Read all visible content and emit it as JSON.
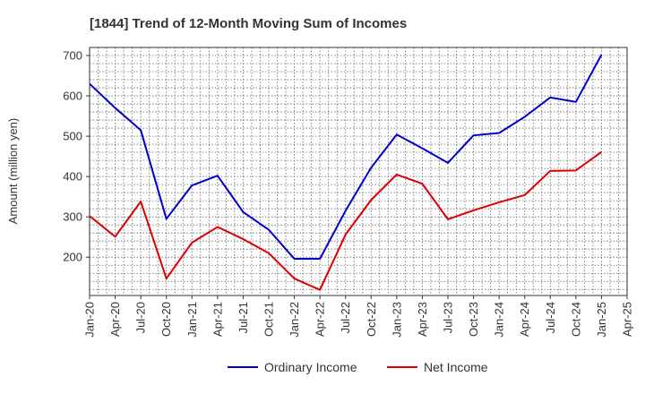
{
  "chart_data": {
    "type": "line",
    "title": "[1844]  Trend of 12-Month Moving Sum of Incomes",
    "xlabel": "",
    "ylabel": "Amount (million yen)",
    "categories": [
      "Jan-20",
      "Apr-20",
      "Jul-20",
      "Oct-20",
      "Jan-21",
      "Apr-21",
      "Jul-21",
      "Oct-21",
      "Jan-22",
      "Apr-22",
      "Jul-22",
      "Oct-22",
      "Jan-23",
      "Apr-23",
      "Jul-23",
      "Oct-23",
      "Jan-24",
      "Apr-24",
      "Jul-24",
      "Oct-24",
      "Jan-25",
      "Apr-25"
    ],
    "y_ticks": [
      200,
      300,
      400,
      500,
      600,
      700
    ],
    "ylim": [
      105,
      720
    ],
    "grid": true,
    "legend_position": "bottom",
    "series": [
      {
        "name": "Ordinary Income",
        "color": "#0000cc",
        "values": [
          630,
          570,
          515,
          295,
          378,
          402,
          312,
          268,
          196,
          196,
          315,
          422,
          504,
          470,
          434,
          502,
          508,
          548,
          596,
          585,
          702,
          null
        ]
      },
      {
        "name": "Net Income",
        "color": "#dd0000",
        "values": [
          302,
          251,
          338,
          147,
          236,
          275,
          245,
          210,
          147,
          119,
          256,
          342,
          405,
          382,
          294,
          316,
          336,
          354,
          414,
          415,
          461,
          null
        ]
      }
    ]
  }
}
